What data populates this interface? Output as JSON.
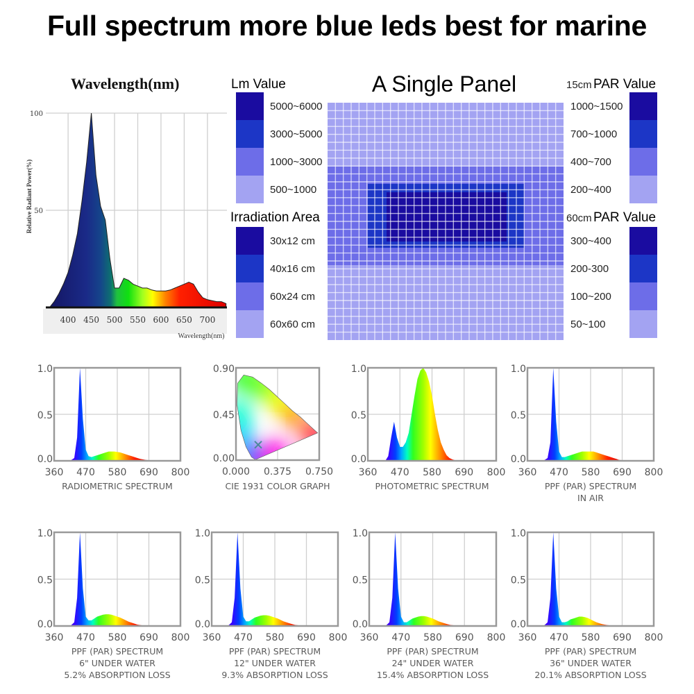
{
  "title": "Full spectrum more blue leds best for marine",
  "colors": {
    "level1": "#1a0ca0",
    "level2": "#1c36c6",
    "level3": "#6d6de8",
    "level4": "#a3a3f2"
  },
  "panel": {
    "title": "A Single Panel"
  },
  "legends": {
    "lm": {
      "title": "Lm Value",
      "items": [
        "5000~6000",
        "3000~5000",
        "1000~3000",
        "500~1000"
      ]
    },
    "irradiation": {
      "title": "Irradiation Area",
      "items": [
        "30x12 cm",
        "40x16 cm",
        "60x24 cm",
        "60x60 cm"
      ]
    },
    "par15": {
      "prefix": "15cm",
      "title": "PAR Value",
      "items": [
        "1000~1500",
        "700~1000",
        "400~700",
        "200~400"
      ]
    },
    "par60": {
      "prefix": "60cm",
      "title": "PAR Value",
      "items": [
        "300~400",
        "200-300",
        "100~200",
        "50~100"
      ]
    }
  },
  "chart_data": [
    {
      "type": "area",
      "title": "Wavelength(nm)",
      "xlabel": "Wavelength(nm)",
      "ylabel": "Relative Radiant Power(%)",
      "xlim": [
        352,
        742
      ],
      "ylim": [
        0,
        100
      ],
      "xticks": [
        "400",
        "450",
        "500",
        "550",
        "600",
        "650",
        "700"
      ],
      "yticks": [
        "50",
        "100"
      ],
      "x_start": 360,
      "x_step": 10,
      "values": [
        0,
        3,
        7,
        12,
        18,
        27,
        38,
        55,
        75,
        100,
        68,
        52,
        45,
        25,
        10,
        10,
        15,
        14,
        12,
        11,
        10,
        10,
        9,
        8.5,
        8.5,
        8.5,
        9,
        10,
        11,
        12,
        13,
        12,
        8,
        5,
        4,
        3.5,
        3,
        3,
        2
      ]
    },
    {
      "type": "area",
      "caption": [
        "RADIOMETRIC SPECTRUM"
      ],
      "xlim": [
        360,
        800
      ],
      "ylim": [
        0,
        1
      ],
      "xticks": [
        "360",
        "470",
        "580",
        "690",
        "800"
      ],
      "yticks": [
        "0.0",
        "0.5",
        "1.0"
      ],
      "x_start": 360,
      "x_step": 10,
      "values": [
        0,
        0,
        0,
        0,
        0,
        0,
        0.01,
        0.03,
        0.25,
        1.0,
        0.45,
        0.12,
        0.05,
        0.04,
        0.05,
        0.06,
        0.07,
        0.08,
        0.09,
        0.1,
        0.1,
        0.1,
        0.095,
        0.09,
        0.08,
        0.07,
        0.06,
        0.05,
        0.04,
        0.03,
        0.02,
        0.015,
        0.01,
        0.007,
        0.005,
        0,
        0,
        0,
        0,
        0,
        0,
        0,
        0,
        0,
        0
      ]
    },
    {
      "type": "scatter",
      "caption": [
        "CIE 1931 COLOR GRAPH"
      ],
      "xlim": [
        0,
        0.75
      ],
      "ylim": [
        0,
        0.9
      ],
      "xticks": [
        "0.000",
        "0.375",
        "0.750"
      ],
      "yticks": [
        "0.00",
        "0.45",
        "0.90"
      ],
      "point": {
        "x": 0.2,
        "y": 0.15
      }
    },
    {
      "type": "area",
      "caption": [
        "PHOTOMETRIC SPECTRUM"
      ],
      "xlim": [
        360,
        800
      ],
      "ylim": [
        0,
        1
      ],
      "xticks": [
        "360",
        "470",
        "580",
        "690",
        "800"
      ],
      "yticks": [
        "0.0",
        "0.5",
        "1.0"
      ],
      "x_start": 360,
      "x_step": 10,
      "values": [
        0,
        0,
        0,
        0,
        0,
        0,
        0,
        0.05,
        0.25,
        0.42,
        0.25,
        0.15,
        0.15,
        0.2,
        0.3,
        0.5,
        0.7,
        0.88,
        0.97,
        1.0,
        0.95,
        0.85,
        0.7,
        0.5,
        0.33,
        0.2,
        0.12,
        0.06,
        0.03,
        0.015,
        0.005,
        0,
        0,
        0,
        0,
        0,
        0,
        0,
        0,
        0,
        0,
        0,
        0,
        0,
        0
      ]
    },
    {
      "type": "area",
      "caption": [
        "PPF (PAR) SPECTRUM",
        "IN AIR"
      ],
      "xlim": [
        360,
        800
      ],
      "ylim": [
        0,
        1
      ],
      "xticks": [
        "360",
        "470",
        "580",
        "690",
        "800"
      ],
      "yticks": [
        "0.0",
        "0.5",
        "1.0"
      ],
      "x_start": 360,
      "x_step": 10,
      "values": [
        0,
        0,
        0,
        0,
        0,
        0,
        0.01,
        0.03,
        0.2,
        1.0,
        0.42,
        0.1,
        0.04,
        0.04,
        0.05,
        0.06,
        0.07,
        0.08,
        0.09,
        0.1,
        0.1,
        0.1,
        0.1,
        0.1,
        0.09,
        0.08,
        0.07,
        0.06,
        0.05,
        0.04,
        0.03,
        0.02,
        0.01,
        0.007,
        0.005,
        0,
        0,
        0,
        0,
        0,
        0,
        0,
        0,
        0,
        0
      ]
    },
    {
      "type": "area",
      "caption": [
        "PPF (PAR) SPECTRUM",
        "6\" UNDER WATER",
        "5.2% ABSORPTION LOSS"
      ],
      "xlim": [
        360,
        800
      ],
      "ylim": [
        0,
        1
      ],
      "xticks": [
        "360",
        "470",
        "580",
        "690",
        "800"
      ],
      "yticks": [
        "0.0",
        "0.5",
        "1.0"
      ],
      "x_start": 360,
      "x_step": 10,
      "values": [
        0,
        0,
        0,
        0,
        0,
        0,
        0.01,
        0.04,
        0.3,
        1.0,
        0.4,
        0.1,
        0.06,
        0.06,
        0.08,
        0.1,
        0.11,
        0.12,
        0.125,
        0.125,
        0.12,
        0.11,
        0.1,
        0.09,
        0.075,
        0.06,
        0.045,
        0.035,
        0.025,
        0.015,
        0.01,
        0.006,
        0.003,
        0,
        0,
        0,
        0,
        0,
        0,
        0,
        0,
        0,
        0,
        0,
        0
      ]
    },
    {
      "type": "area",
      "caption": [
        "PPF (PAR) SPECTRUM",
        "12\" UNDER WATER",
        "9.3% ABSORPTION LOSS"
      ],
      "xlim": [
        360,
        800
      ],
      "ylim": [
        0,
        1
      ],
      "xticks": [
        "360",
        "470",
        "580",
        "690",
        "800"
      ],
      "yticks": [
        "0.0",
        "0.5",
        "1.0"
      ],
      "x_start": 360,
      "x_step": 10,
      "values": [
        0,
        0,
        0,
        0,
        0,
        0,
        0.01,
        0.04,
        0.3,
        1.0,
        0.4,
        0.1,
        0.05,
        0.05,
        0.07,
        0.09,
        0.1,
        0.11,
        0.115,
        0.115,
        0.11,
        0.1,
        0.09,
        0.08,
        0.065,
        0.05,
        0.04,
        0.03,
        0.02,
        0.012,
        0.008,
        0.004,
        0.002,
        0,
        0,
        0,
        0,
        0,
        0,
        0,
        0,
        0,
        0,
        0,
        0
      ]
    },
    {
      "type": "area",
      "caption": [
        "PPF (PAR) SPECTRUM",
        "24\" UNDER WATER",
        "15.4% ABSORPTION LOSS"
      ],
      "xlim": [
        360,
        800
      ],
      "ylim": [
        0,
        1
      ],
      "xticks": [
        "360",
        "470",
        "580",
        "690",
        "800"
      ],
      "yticks": [
        "0.0",
        "0.5",
        "1.0"
      ],
      "x_start": 360,
      "x_step": 10,
      "values": [
        0,
        0,
        0,
        0,
        0,
        0,
        0.01,
        0.04,
        0.3,
        1.0,
        0.4,
        0.1,
        0.04,
        0.04,
        0.06,
        0.08,
        0.09,
        0.1,
        0.105,
        0.105,
        0.1,
        0.09,
        0.08,
        0.065,
        0.05,
        0.04,
        0.03,
        0.02,
        0.012,
        0.008,
        0.005,
        0.002,
        0,
        0,
        0,
        0,
        0,
        0,
        0,
        0,
        0,
        0,
        0,
        0,
        0
      ]
    },
    {
      "type": "area",
      "caption": [
        "PPF (PAR) SPECTRUM",
        "36\" UNDER WATER",
        "20.1% ABSORPTION LOSS"
      ],
      "xlim": [
        360,
        800
      ],
      "ylim": [
        0,
        1
      ],
      "xticks": [
        "360",
        "470",
        "580",
        "690",
        "800"
      ],
      "yticks": [
        "0.0",
        "0.5",
        "1.0"
      ],
      "x_start": 360,
      "x_step": 10,
      "values": [
        0,
        0,
        0,
        0,
        0,
        0,
        0.01,
        0.04,
        0.3,
        1.0,
        0.4,
        0.1,
        0.04,
        0.04,
        0.05,
        0.07,
        0.08,
        0.09,
        0.1,
        0.1,
        0.095,
        0.085,
        0.07,
        0.055,
        0.04,
        0.03,
        0.02,
        0.014,
        0.009,
        0.005,
        0.003,
        0,
        0,
        0,
        0,
        0,
        0,
        0,
        0,
        0,
        0,
        0,
        0,
        0,
        0
      ]
    }
  ]
}
